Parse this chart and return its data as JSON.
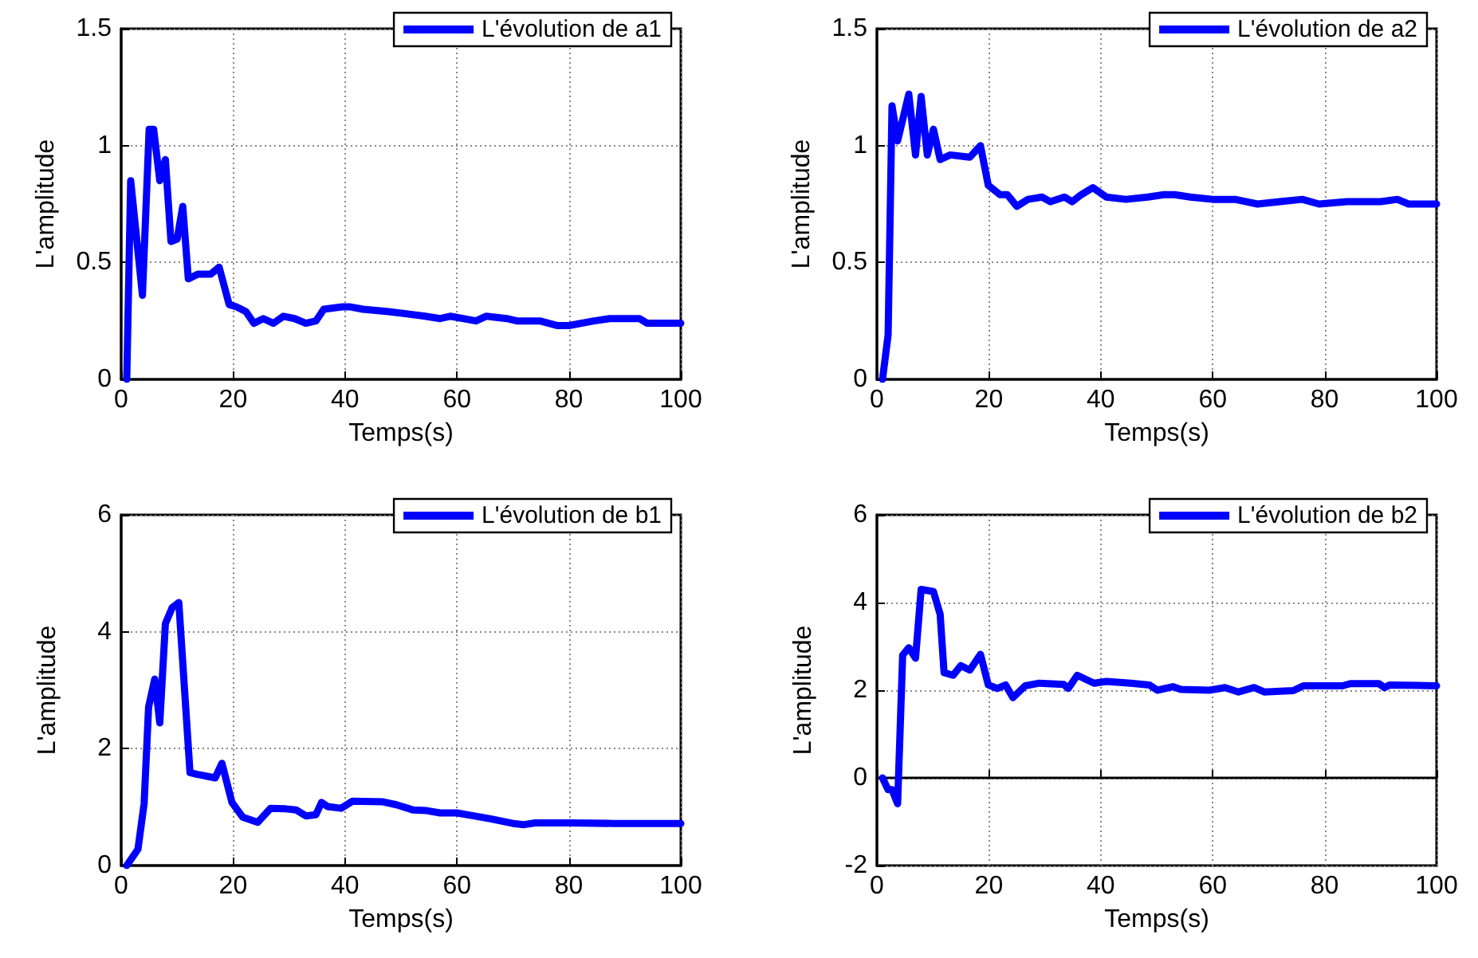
{
  "chart_data": [
    {
      "type": "line",
      "xlabel": "Temps(s)",
      "ylabel": "L'amplitude",
      "xlim": [
        0,
        100
      ],
      "xticks": [
        0,
        20,
        40,
        60,
        80,
        100
      ],
      "ylim": [
        0,
        1.5
      ],
      "yticks": [
        0,
        0.5,
        1,
        1.5
      ],
      "grid": true,
      "legend": "top right",
      "line_style": "solid",
      "marker": "none",
      "series": [
        {
          "name": "L'évolution de a1",
          "color": "#0000ff",
          "x": [
            1,
            1.7,
            3.8,
            5,
            5.8,
            6.9,
            7.9,
            8.9,
            10,
            11,
            12,
            13.7,
            16,
            17.5,
            19.3,
            20.6,
            22.3,
            23.7,
            25.4,
            27.2,
            29,
            31,
            33,
            34.8,
            36.2,
            39.5,
            41,
            43.2,
            47.8,
            54.3,
            57,
            58.8,
            63.4,
            65.2,
            68.9,
            70.7,
            74.8,
            78,
            80,
            84.5,
            87.3,
            92.6,
            94,
            100
          ],
          "values": [
            0,
            0.85,
            0.36,
            1.07,
            1.07,
            0.85,
            0.94,
            0.59,
            0.6,
            0.74,
            0.43,
            0.45,
            0.45,
            0.48,
            0.32,
            0.31,
            0.29,
            0.24,
            0.26,
            0.24,
            0.27,
            0.26,
            0.24,
            0.25,
            0.3,
            0.31,
            0.31,
            0.3,
            0.29,
            0.27,
            0.26,
            0.27,
            0.25,
            0.27,
            0.26,
            0.25,
            0.25,
            0.23,
            0.23,
            0.25,
            0.26,
            0.26,
            0.24,
            0.24
          ]
        }
      ]
    },
    {
      "type": "line",
      "xlabel": "Temps(s)",
      "ylabel": "L'amplitude",
      "xlim": [
        0,
        100
      ],
      "xticks": [
        0,
        20,
        40,
        60,
        80,
        100
      ],
      "ylim": [
        0,
        1.5
      ],
      "yticks": [
        0,
        0.5,
        1,
        1.5
      ],
      "grid": true,
      "legend": "top right",
      "line_style": "solid",
      "marker": "none",
      "series": [
        {
          "name": "L'évolution de a2",
          "color": "#0000ff",
          "x": [
            1,
            2,
            2.7,
            3.7,
            5.7,
            6.9,
            7.9,
            9,
            10.1,
            11.3,
            13.1,
            16.6,
            18.5,
            19.9,
            22,
            23.3,
            25,
            27,
            29.5,
            31,
            33.5,
            34.9,
            36.5,
            38.6,
            41,
            44.5,
            48.4,
            51.3,
            53.2,
            56,
            60,
            64,
            68,
            72,
            76,
            79,
            84,
            90,
            93,
            95,
            100
          ],
          "values": [
            0,
            0.19,
            1.17,
            1.02,
            1.22,
            0.96,
            1.21,
            0.96,
            1.07,
            0.94,
            0.96,
            0.95,
            1.0,
            0.83,
            0.79,
            0.79,
            0.74,
            0.77,
            0.78,
            0.76,
            0.78,
            0.76,
            0.79,
            0.82,
            0.78,
            0.77,
            0.78,
            0.79,
            0.79,
            0.78,
            0.77,
            0.77,
            0.75,
            0.76,
            0.77,
            0.75,
            0.76,
            0.76,
            0.77,
            0.75,
            0.75
          ]
        }
      ]
    },
    {
      "type": "line",
      "xlabel": "Temps(s)",
      "ylabel": "L'amplitude",
      "xlim": [
        0,
        100
      ],
      "xticks": [
        0,
        20,
        40,
        60,
        80,
        100
      ],
      "ylim": [
        0,
        6
      ],
      "yticks": [
        0,
        2,
        4,
        6
      ],
      "grid": true,
      "legend": "top right",
      "line_style": "solid",
      "marker": "none",
      "series": [
        {
          "name": "L'évolution de b1",
          "color": "#0000ff",
          "x": [
            1,
            3,
            4.1,
            4.9,
            6,
            6.9,
            7.9,
            9.1,
            10.3,
            12.3,
            13.6,
            16.8,
            18,
            19.8,
            21.7,
            24.4,
            26.7,
            29.4,
            31.3,
            33,
            34.8,
            35.8,
            36.9,
            39.3,
            41.3,
            46.8,
            49.2,
            52.2,
            54.6,
            57,
            60,
            63,
            66,
            70,
            72,
            74,
            80,
            88,
            91,
            100
          ],
          "values": [
            0,
            0.28,
            1.06,
            2.71,
            3.19,
            2.44,
            4.14,
            4.41,
            4.5,
            1.59,
            1.56,
            1.5,
            1.75,
            1.08,
            0.83,
            0.74,
            0.98,
            0.97,
            0.95,
            0.85,
            0.87,
            1.08,
            1.01,
            0.98,
            1.1,
            1.09,
            1.04,
            0.95,
            0.94,
            0.9,
            0.9,
            0.85,
            0.8,
            0.72,
            0.7,
            0.73,
            0.73,
            0.72,
            0.72,
            0.72
          ]
        }
      ]
    },
    {
      "type": "line",
      "xlabel": "Temps(s)",
      "ylabel": "L'amplitude",
      "xlim": [
        0,
        100
      ],
      "xticks": [
        0,
        20,
        40,
        60,
        80,
        100
      ],
      "ylim": [
        -2,
        6
      ],
      "yticks": [
        -2,
        0,
        2,
        4,
        6
      ],
      "grid": true,
      "legend": "top right",
      "line_style": "solid",
      "marker": "none",
      "series": [
        {
          "name": "L'évolution de b2",
          "color": "#0000ff",
          "x": [
            1,
            2,
            2.7,
            3.7,
            4.6,
            5.7,
            6.9,
            7.9,
            10.1,
            11.3,
            12,
            13.6,
            15,
            16.6,
            18.5,
            19.9,
            21.5,
            23,
            24.3,
            26.5,
            29,
            33.4,
            34.2,
            35.8,
            38.8,
            41,
            45.4,
            48.7,
            50.1,
            52.9,
            54.3,
            59.4,
            62.2,
            64.6,
            67.4,
            69.2,
            74.4,
            76.2,
            83.2,
            84.6,
            89.7,
            90.7,
            91.6,
            100
          ],
          "values": [
            0,
            -0.27,
            -0.27,
            -0.59,
            2.8,
            2.97,
            2.73,
            4.3,
            4.25,
            3.73,
            2.4,
            2.34,
            2.56,
            2.46,
            2.82,
            2.12,
            2.04,
            2.12,
            1.83,
            2.1,
            2.16,
            2.13,
            2.04,
            2.34,
            2.16,
            2.2,
            2.16,
            2.12,
            2.0,
            2.08,
            2.02,
            2.0,
            2.06,
            1.96,
            2.06,
            1.96,
            1.99,
            2.1,
            2.1,
            2.15,
            2.15,
            2.06,
            2.12,
            2.1
          ]
        }
      ]
    }
  ]
}
